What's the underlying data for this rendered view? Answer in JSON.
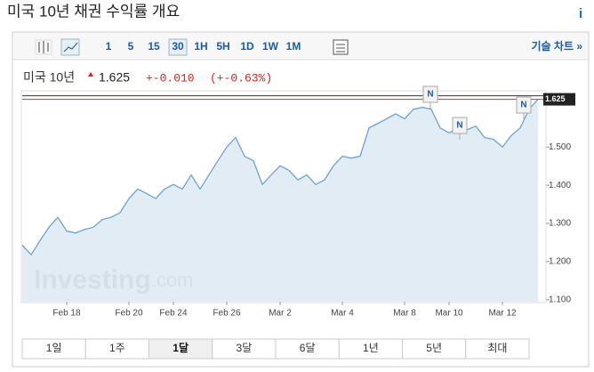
{
  "header": {
    "title": "미국 10년 채권 수익률 개요",
    "info": "i"
  },
  "toolbar": {
    "intervals": [
      "1",
      "5",
      "15",
      "30",
      "1H",
      "5H",
      "1D",
      "1W",
      "1M"
    ],
    "technical": "기술 차트 »"
  },
  "quote": {
    "name": "미국 10년",
    "price": "1.625",
    "change": "+-0.010",
    "change_pct": "(+-0.63%)"
  },
  "chart_data": {
    "type": "line",
    "categories": [
      null,
      null,
      null,
      null,
      null,
      "Feb 18",
      null,
      null,
      null,
      null,
      null,
      null,
      "Feb 20",
      null,
      null,
      null,
      null,
      "Feb 24",
      null,
      null,
      null,
      null,
      null,
      "Feb 26",
      null,
      null,
      null,
      null,
      null,
      "Mar 2",
      null,
      null,
      null,
      null,
      null,
      null,
      "Mar 4",
      null,
      null,
      null,
      null,
      null,
      null,
      "Mar 8",
      null,
      null,
      null,
      null,
      "Mar 10",
      null,
      null,
      null,
      null,
      null,
      "Mar 12",
      null,
      null,
      null,
      null
    ],
    "values": [
      1.243,
      1.218,
      1.255,
      1.29,
      1.316,
      1.28,
      1.275,
      1.284,
      1.29,
      1.31,
      1.316,
      1.328,
      1.365,
      1.39,
      1.378,
      1.365,
      1.39,
      1.402,
      1.39,
      1.427,
      1.39,
      1.427,
      1.464,
      1.5,
      1.525,
      1.476,
      1.464,
      1.402,
      1.427,
      1.451,
      1.439,
      1.414,
      1.427,
      1.402,
      1.414,
      1.451,
      1.476,
      1.471,
      1.476,
      1.55,
      1.562,
      1.574,
      1.587,
      1.574,
      1.599,
      1.604,
      1.599,
      1.55,
      1.537,
      1.55,
      1.545,
      1.555,
      1.525,
      1.52,
      1.5,
      1.53,
      1.55,
      1.599,
      1.625
    ],
    "color": "#6fa3d1",
    "ylim": [
      1.095,
      1.645
    ],
    "yticks": [
      {
        "value": 1.1,
        "label": "1.100"
      },
      {
        "value": 1.2,
        "label": "1.200"
      },
      {
        "value": 1.3,
        "label": "1.300"
      },
      {
        "value": 1.4,
        "label": "1.400"
      },
      {
        "value": 1.5,
        "label": "1.500"
      }
    ],
    "current": {
      "value": 1.625,
      "label": "1.625"
    },
    "annotations": [
      "N",
      "N",
      "N"
    ],
    "watermark": {
      "brand": "Investing",
      "suffix": ".com"
    }
  },
  "ranges": [
    "1일",
    "1주",
    "1달",
    "3달",
    "6달",
    "1년",
    "5년",
    "최대"
  ]
}
